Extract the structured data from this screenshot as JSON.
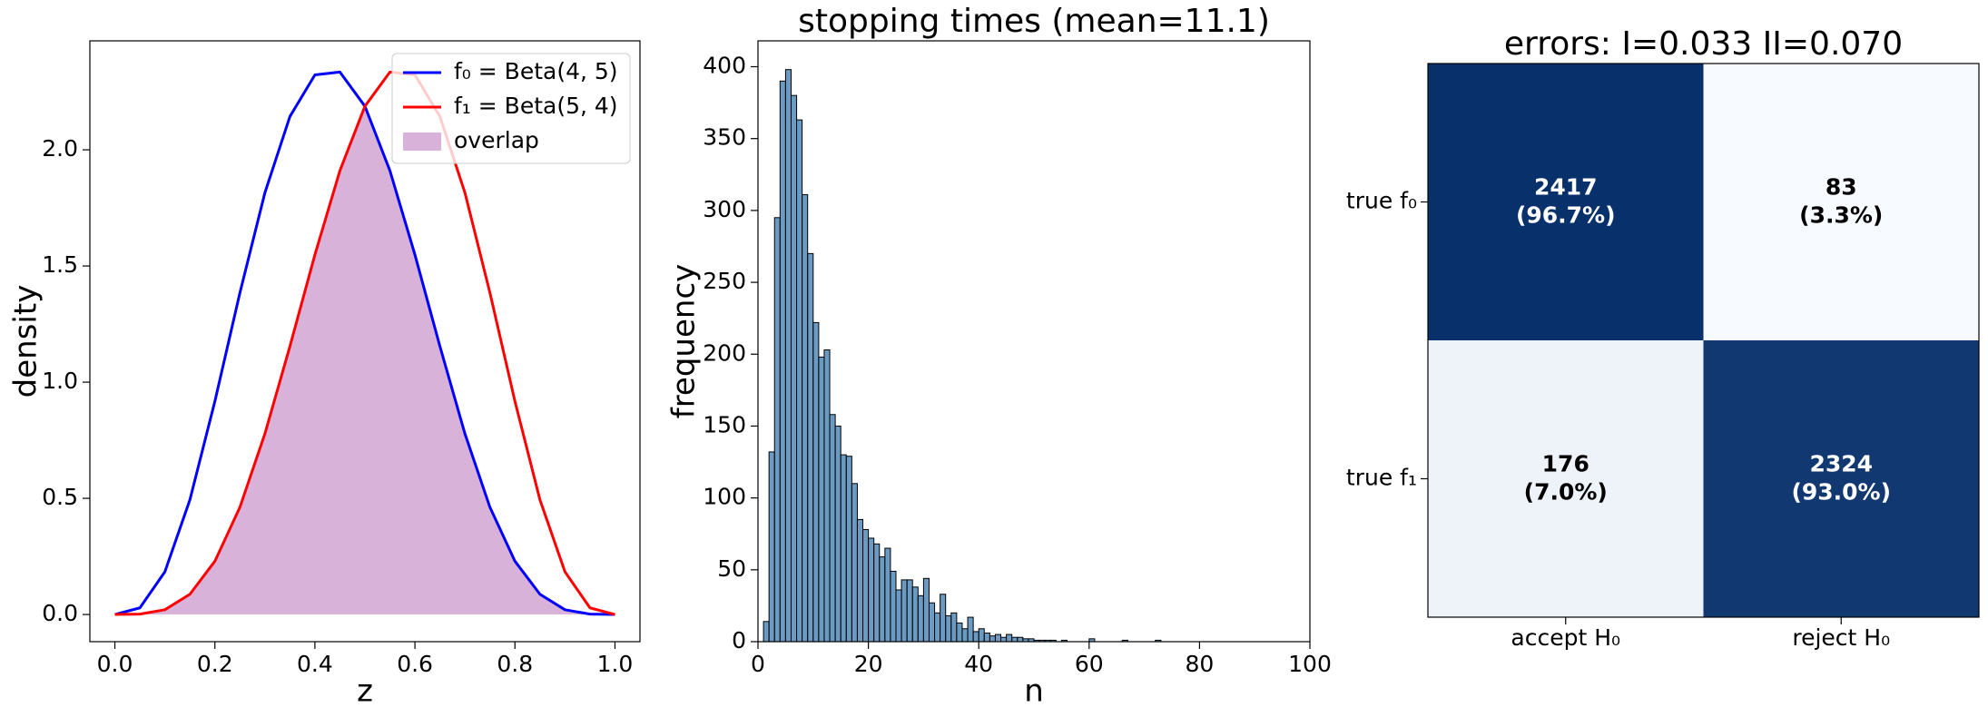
{
  "chart_data": [
    {
      "type": "line",
      "xlabel": "z",
      "ylabel": "density",
      "x": [
        0,
        0.05,
        0.1,
        0.15,
        0.2,
        0.25,
        0.3,
        0.35,
        0.4,
        0.45,
        0.5,
        0.55,
        0.6,
        0.65,
        0.7,
        0.75,
        0.8,
        0.85,
        0.9,
        0.95,
        1
      ],
      "series": [
        {
          "name": "f₀ = Beta(4, 5)",
          "color": "#0000ff",
          "values": [
            0,
            0.0285,
            0.1837,
            0.4933,
            0.9175,
            1.3843,
            1.8152,
            2.143,
            2.3224,
            2.3348,
            2.1875,
            1.9103,
            1.5483,
            1.1539,
            0.7779,
            0.4614,
            0.2294,
            0.0871,
            0.0204,
            0.0015,
            0
          ]
        },
        {
          "name": "f₁ = Beta(5, 4)",
          "color": "#ff0000",
          "values": [
            0,
            0.0015,
            0.0204,
            0.0871,
            0.2294,
            0.4614,
            0.7779,
            1.1539,
            1.5483,
            1.9103,
            2.1875,
            2.3348,
            2.3224,
            2.143,
            1.8152,
            1.3843,
            0.9175,
            0.4933,
            0.1837,
            0.0285,
            0
          ]
        },
        {
          "name": "overlap",
          "color": "#800080",
          "alpha": 0.3,
          "fill": true,
          "values": [
            0,
            0.0015,
            0.0204,
            0.0871,
            0.2294,
            0.4614,
            0.7779,
            1.1539,
            1.5483,
            1.9103,
            2.1875,
            1.9103,
            1.5483,
            1.1539,
            0.7779,
            0.4614,
            0.2294,
            0.0871,
            0.0204,
            0.0015,
            0
          ]
        }
      ],
      "xlim": [
        -0.05,
        1.05
      ],
      "ylim": [
        -0.117,
        2.469
      ],
      "xticks": [
        {
          "value": 0,
          "label": "0.0"
        },
        0.2,
        0.4,
        0.6,
        0.8,
        {
          "value": 1,
          "label": "1.0"
        }
      ],
      "yticks": [
        {
          "value": 0,
          "label": "0.0"
        },
        0.5,
        {
          "value": 1,
          "label": "1.0"
        },
        1.5,
        {
          "value": 2,
          "label": "2.0"
        }
      ],
      "legend": "upper right",
      "grid": false
    },
    {
      "type": "histogram",
      "title": "stopping times (mean=11.1)",
      "xlabel": "n",
      "ylabel": "frequency",
      "color": "#4682b4",
      "alpha": 0.8,
      "edgecolor": "#000000",
      "bins": [
        1,
        2,
        3,
        4,
        5,
        6,
        7,
        8,
        9,
        10,
        11,
        12,
        13,
        14,
        15,
        16,
        17,
        18,
        19,
        20,
        21,
        22,
        23,
        24,
        25,
        26,
        27,
        28,
        29,
        30,
        31,
        32,
        33,
        34,
        35,
        36,
        37,
        38,
        39,
        40,
        41,
        42,
        43,
        44,
        45,
        46,
        47,
        48,
        49,
        50,
        51,
        52,
        53,
        54,
        55,
        56,
        57,
        58,
        59,
        60,
        61,
        62,
        63,
        64,
        65,
        66,
        67,
        68,
        69,
        70,
        71,
        72,
        73
      ],
      "counts": [
        14,
        132,
        295,
        390,
        398,
        380,
        363,
        311,
        270,
        222,
        198,
        203,
        158,
        150,
        130,
        129,
        110,
        85,
        78,
        72,
        68,
        59,
        65,
        49,
        36,
        43,
        43,
        38,
        32,
        44,
        27,
        20,
        33,
        18,
        20,
        13,
        9,
        17,
        7,
        9,
        6,
        4,
        5,
        3,
        5,
        3,
        3,
        2,
        2,
        1,
        1,
        1,
        1,
        0,
        1,
        0,
        0,
        0,
        0,
        2,
        0,
        0,
        0,
        0,
        0,
        1,
        0,
        0,
        0,
        0,
        0,
        1
      ],
      "xlim": [
        0,
        100
      ],
      "ylim": [
        0,
        418
      ],
      "xticks": [
        0,
        20,
        40,
        60,
        80,
        100
      ],
      "yticks": [
        0,
        50,
        100,
        150,
        200,
        250,
        300,
        350,
        400
      ],
      "grid": false
    },
    {
      "type": "heatmap",
      "title": "errors: I=0.033 II=0.070",
      "x_categories": [
        "accept H₀",
        "reject H₀"
      ],
      "y_categories": [
        "true f₀",
        "true f₁"
      ],
      "values": [
        [
          2417,
          83
        ],
        [
          176,
          2324
        ]
      ],
      "percents": [
        [
          96.7,
          3.3
        ],
        [
          7.0,
          93.0
        ]
      ],
      "percent_labels": [
        [
          "(96.7%)",
          "(3.3%)"
        ],
        [
          "(7.0%)",
          "(93.0%)"
        ]
      ],
      "cmap": [
        "#f7fbff",
        "#08306b"
      ],
      "clim": [
        83,
        2417
      ]
    }
  ]
}
